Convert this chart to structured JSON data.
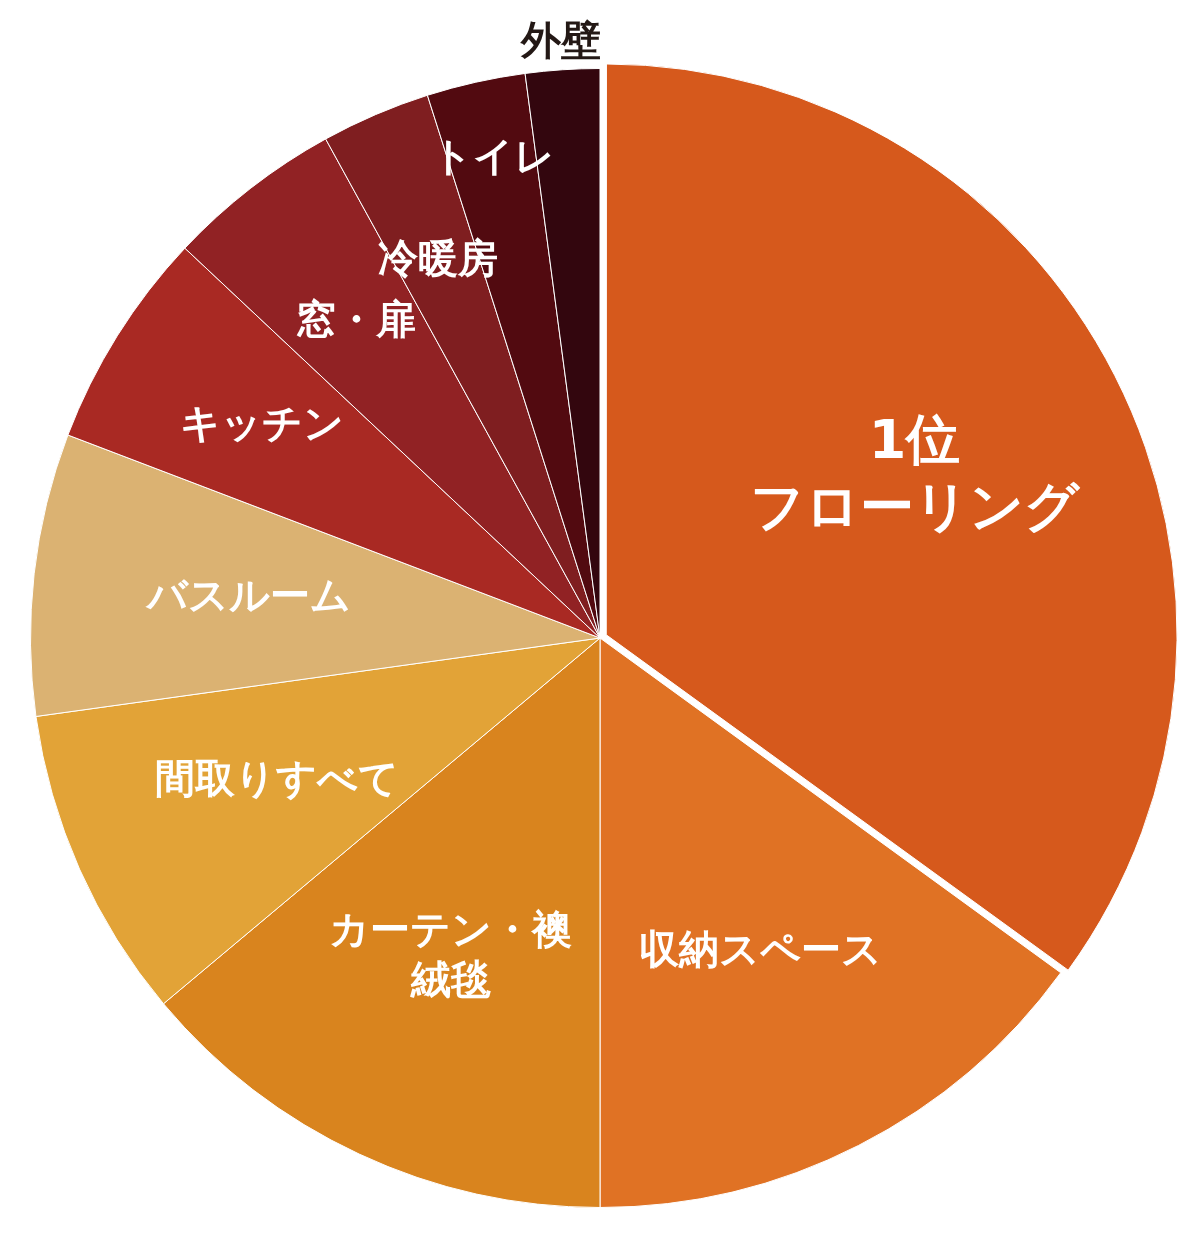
{
  "chart_data": {
    "type": "pie",
    "categories": [
      "1位フローリング",
      "収納スペース",
      "カーテン・襖絨毯",
      "間取りすべて",
      "バスルーム",
      "キッチン",
      "窓・扉",
      "冷暖房",
      "トイレ",
      "外壁"
    ],
    "values": [
      35,
      15,
      13.9,
      8.9,
      8,
      6.2,
      5,
      3.1,
      2.8,
      2.1
    ],
    "colors": [
      "#d6591c",
      "#e07224",
      "#d9841e",
      "#e2a337",
      "#dbb272",
      "#a92923",
      "#912224",
      "#7f1e20",
      "#520a10",
      "#33060e"
    ],
    "legend": false
  }
}
